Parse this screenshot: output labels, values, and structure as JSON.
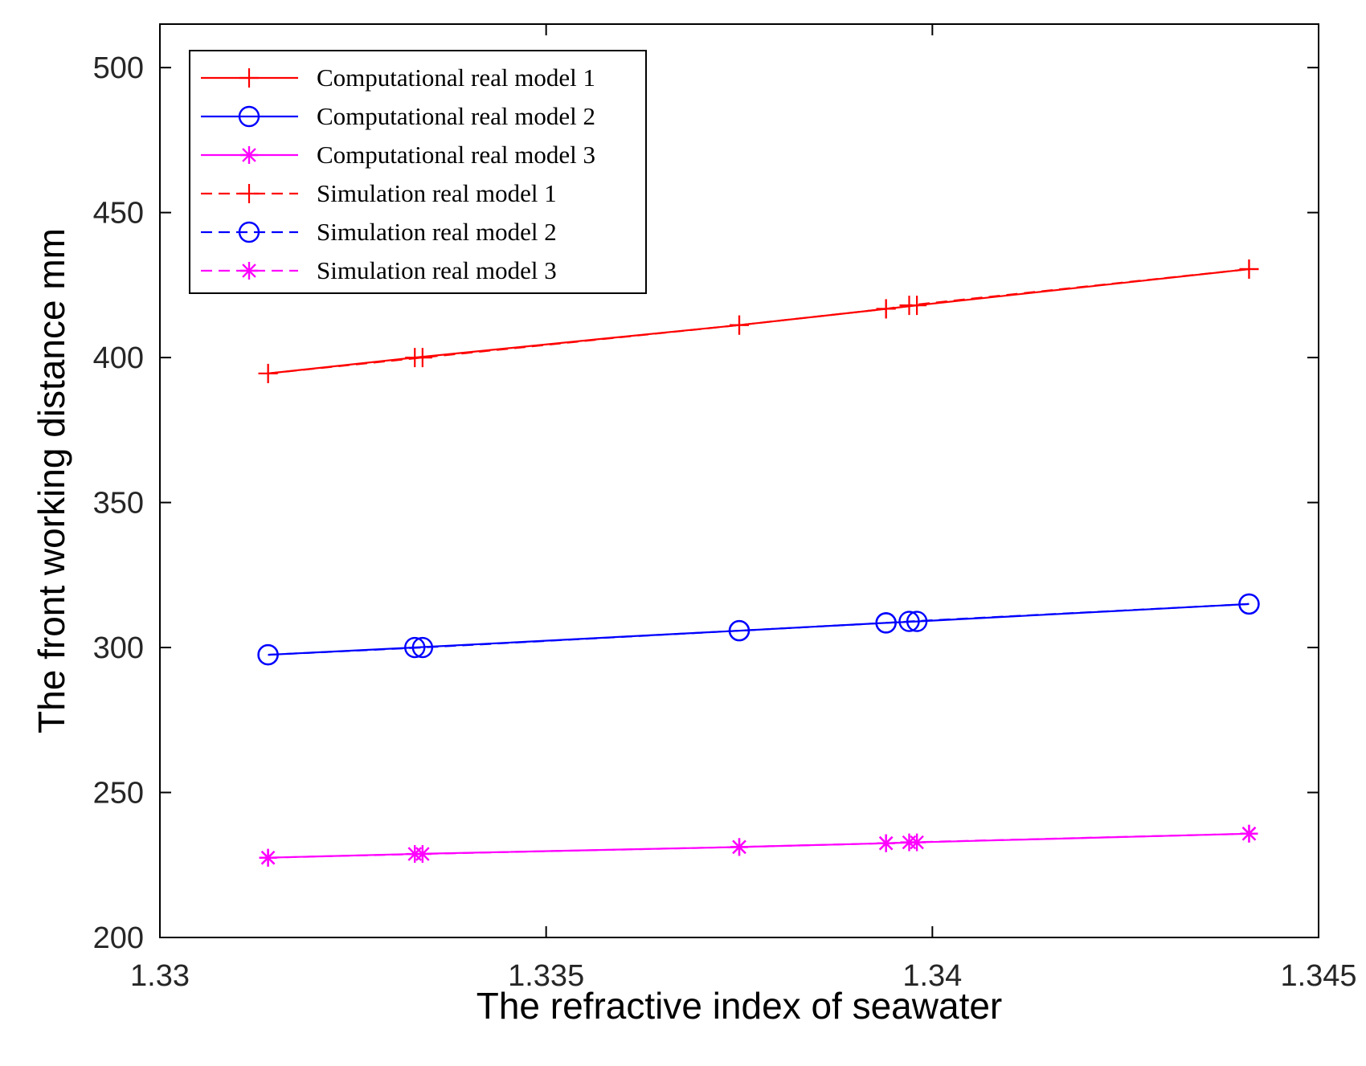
{
  "chart_data": {
    "type": "line",
    "title": "",
    "xlabel": "The refractive index of seawater",
    "ylabel": "The front working distance mm",
    "xlim": [
      1.33,
      1.345
    ],
    "ylim": [
      200,
      515
    ],
    "x_ticks": [
      1.33,
      1.335,
      1.34,
      1.345
    ],
    "x_tick_labels": [
      "1.33",
      "1.335",
      "1.34",
      "1.345"
    ],
    "y_ticks": [
      200,
      250,
      300,
      350,
      400,
      450,
      500
    ],
    "y_tick_labels": [
      "200",
      "250",
      "300",
      "350",
      "400",
      "450",
      "500"
    ],
    "grid": false,
    "legend_position": "top-left",
    "series": [
      {
        "name": "Computational real model 1",
        "color": "#ff0000",
        "line_style": "solid",
        "marker": "plus",
        "x": [
          1.3314,
          1.3333,
          1.3375,
          1.3394,
          1.3398,
          1.3441
        ],
        "y": [
          394.5,
          400.0,
          411.2,
          416.8,
          418.0,
          430.5
        ]
      },
      {
        "name": "Computational real model 2",
        "color": "#0000ff",
        "line_style": "solid",
        "marker": "circle",
        "x": [
          1.3314,
          1.3333,
          1.3375,
          1.3394,
          1.3398,
          1.3441
        ],
        "y": [
          297.5,
          300.0,
          305.8,
          308.5,
          309.0,
          315.0
        ]
      },
      {
        "name": "Computational real model 3",
        "color": "#ff00ff",
        "line_style": "solid",
        "marker": "asterisk",
        "x": [
          1.3314,
          1.3333,
          1.3375,
          1.3394,
          1.3398,
          1.3441
        ],
        "y": [
          227.5,
          228.8,
          231.2,
          232.5,
          232.8,
          235.8
        ]
      },
      {
        "name": "Simulation real model 1",
        "color": "#ff0000",
        "line_style": "dashed",
        "marker": "plus",
        "x": [
          1.3314,
          1.3334,
          1.3375,
          1.3394,
          1.3397,
          1.3441
        ],
        "y": [
          394.5,
          400.0,
          411.2,
          416.8,
          418.0,
          430.5
        ]
      },
      {
        "name": "Simulation real model 2",
        "color": "#0000ff",
        "line_style": "dashed",
        "marker": "circle",
        "x": [
          1.3314,
          1.3334,
          1.3375,
          1.3394,
          1.3397,
          1.3441
        ],
        "y": [
          297.5,
          300.0,
          305.8,
          308.5,
          309.0,
          315.0
        ]
      },
      {
        "name": "Simulation real model 3",
        "color": "#ff00ff",
        "line_style": "dashed",
        "marker": "asterisk",
        "x": [
          1.3314,
          1.3334,
          1.3375,
          1.3394,
          1.3397,
          1.3441
        ],
        "y": [
          227.5,
          228.8,
          231.2,
          232.5,
          232.8,
          235.8
        ]
      }
    ]
  }
}
